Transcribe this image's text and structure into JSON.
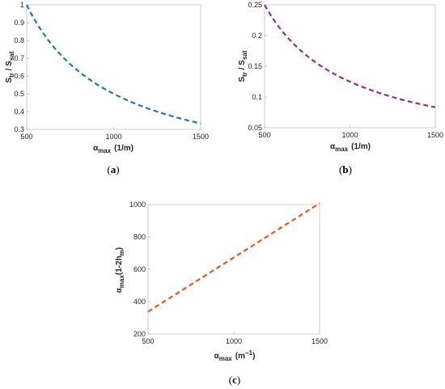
{
  "chart_data": [
    {
      "type": "line",
      "panel": "a",
      "x": [
        500,
        625,
        750,
        875,
        1000,
        1125,
        1250,
        1375,
        1500
      ],
      "series": [
        {
          "values": [
            1.0,
            0.8,
            0.6667,
            0.5714,
            0.5,
            0.4444,
            0.4,
            0.3636,
            0.3333
          ],
          "color": "#1f77b4",
          "style": "dashed"
        }
      ],
      "xlabel": "αmax (1/m)",
      "xlabel_parts": {
        "symbol": "α",
        "sub": "max",
        "unit": "(1/m)"
      },
      "ylabel": "Str / Ssat",
      "ylabel_parts": {
        "a": "S",
        "a_sub": "tr",
        "sep": " / ",
        "b": "S",
        "b_sub": "sat"
      },
      "xlim": [
        500,
        1500
      ],
      "ylim": [
        0.3,
        1.0
      ],
      "xticks": [
        "500",
        "1000",
        "1500"
      ],
      "yticks": [
        "0.3",
        "0.4",
        "0.5",
        "0.6",
        "0.7",
        "0.8",
        "0.9",
        "1"
      ],
      "ytick_values": [
        0.3,
        0.4,
        0.5,
        0.6,
        0.7,
        0.8,
        0.9,
        1.0
      ],
      "xtick_values": [
        500,
        1000,
        1500
      ],
      "grid": false
    },
    {
      "type": "line",
      "panel": "b",
      "x": [
        500,
        625,
        750,
        875,
        1000,
        1125,
        1250,
        1375,
        1500
      ],
      "series": [
        {
          "values": [
            0.25,
            0.2,
            0.1667,
            0.1429,
            0.125,
            0.1111,
            0.1,
            0.0909,
            0.0833
          ],
          "color": "#8e2c9e",
          "style": "dashed"
        }
      ],
      "xlabel": "αmax (1/m)",
      "xlabel_parts": {
        "symbol": "α",
        "sub": "max",
        "unit": "(1/m)"
      },
      "ylabel": "Str / Ssat",
      "ylabel_parts": {
        "a": "S",
        "a_sub": "tr",
        "sep": " / ",
        "b": "S",
        "b_sub": "sat"
      },
      "xlim": [
        500,
        1500
      ],
      "ylim": [
        0.05,
        0.25
      ],
      "xticks": [
        "500",
        "1000",
        "1500"
      ],
      "yticks": [
        "0.05",
        "0.1",
        "0.15",
        "0.2",
        "0.25"
      ],
      "ytick_values": [
        0.05,
        0.1,
        0.15,
        0.2,
        0.25
      ],
      "xtick_values": [
        500,
        1000,
        1500
      ],
      "grid": false
    },
    {
      "type": "line",
      "panel": "c",
      "x": [
        500,
        1500
      ],
      "series": [
        {
          "values": [
            338,
            1008
          ],
          "color": "#e8581a",
          "style": "dashed"
        }
      ],
      "xlabel": "αmax (m−1)",
      "xlabel_parts": {
        "symbol": "α",
        "sub": "max",
        "unit_pre": "(m",
        "unit_sup": "−1",
        "unit_post": ")"
      },
      "ylabel": "αmax(1-2hm)",
      "ylabel_parts": {
        "symbol": "α",
        "sub": "max",
        "rest": "(1-2h",
        "rest_sub": "m",
        "close": ")"
      },
      "xlim": [
        500,
        1500
      ],
      "ylim": [
        200,
        1000
      ],
      "xticks": [
        "500",
        "1000",
        "1500"
      ],
      "yticks": [
        "200",
        "400",
        "600",
        "800",
        "1000"
      ],
      "ytick_values": [
        200,
        400,
        600,
        800,
        1000
      ],
      "xtick_values": [
        500,
        1000,
        1500
      ],
      "grid": false
    }
  ],
  "captions": {
    "a": {
      "open": "(",
      "letter": "a",
      "close": ")"
    },
    "b": {
      "open": "(",
      "letter": "b",
      "close": ")"
    },
    "c": {
      "open": "(",
      "letter": "c",
      "close": ")"
    }
  }
}
